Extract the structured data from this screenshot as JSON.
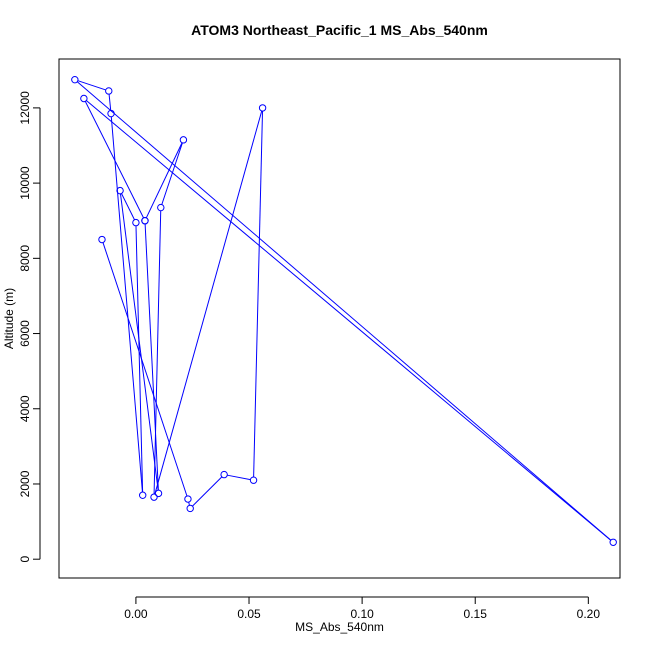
{
  "chart_data": {
    "type": "line",
    "title": "ATOM3 Northeast_Pacific_1 MS_Abs_540nm",
    "xlabel": "MS_Abs_540nm",
    "ylabel": "Altitude (m)",
    "xlim": [
      -0.034,
      0.214
    ],
    "ylim": [
      -500,
      13300
    ],
    "xticks": [
      0.0,
      0.05,
      0.1,
      0.15,
      0.2
    ],
    "xtick_labels": [
      "0.00",
      "0.05",
      "0.10",
      "0.15",
      "0.20"
    ],
    "yticks": [
      0,
      2000,
      4000,
      6000,
      8000,
      10000,
      12000
    ],
    "ytick_labels": [
      "0",
      "2000",
      "4000",
      "6000",
      "8000",
      "10000",
      "12000"
    ],
    "grid": false,
    "legend": "none",
    "series": [
      {
        "color": "#0000ff",
        "marker": "open-circle",
        "x": [
          -0.015,
          0.023,
          0.024,
          0.039,
          0.052,
          0.056,
          0.008,
          0.011,
          0.021,
          0.004,
          0.01,
          -0.007,
          0.0,
          0.003,
          -0.011,
          -0.012,
          -0.027,
          0.211,
          -0.023,
          0.004
        ],
        "y": [
          8500,
          1600,
          1350,
          2250,
          2100,
          12000,
          1650,
          9350,
          11150,
          9000,
          1750,
          9800,
          8950,
          1700,
          11850,
          12450,
          12750,
          450,
          12250,
          9000
        ]
      }
    ]
  }
}
